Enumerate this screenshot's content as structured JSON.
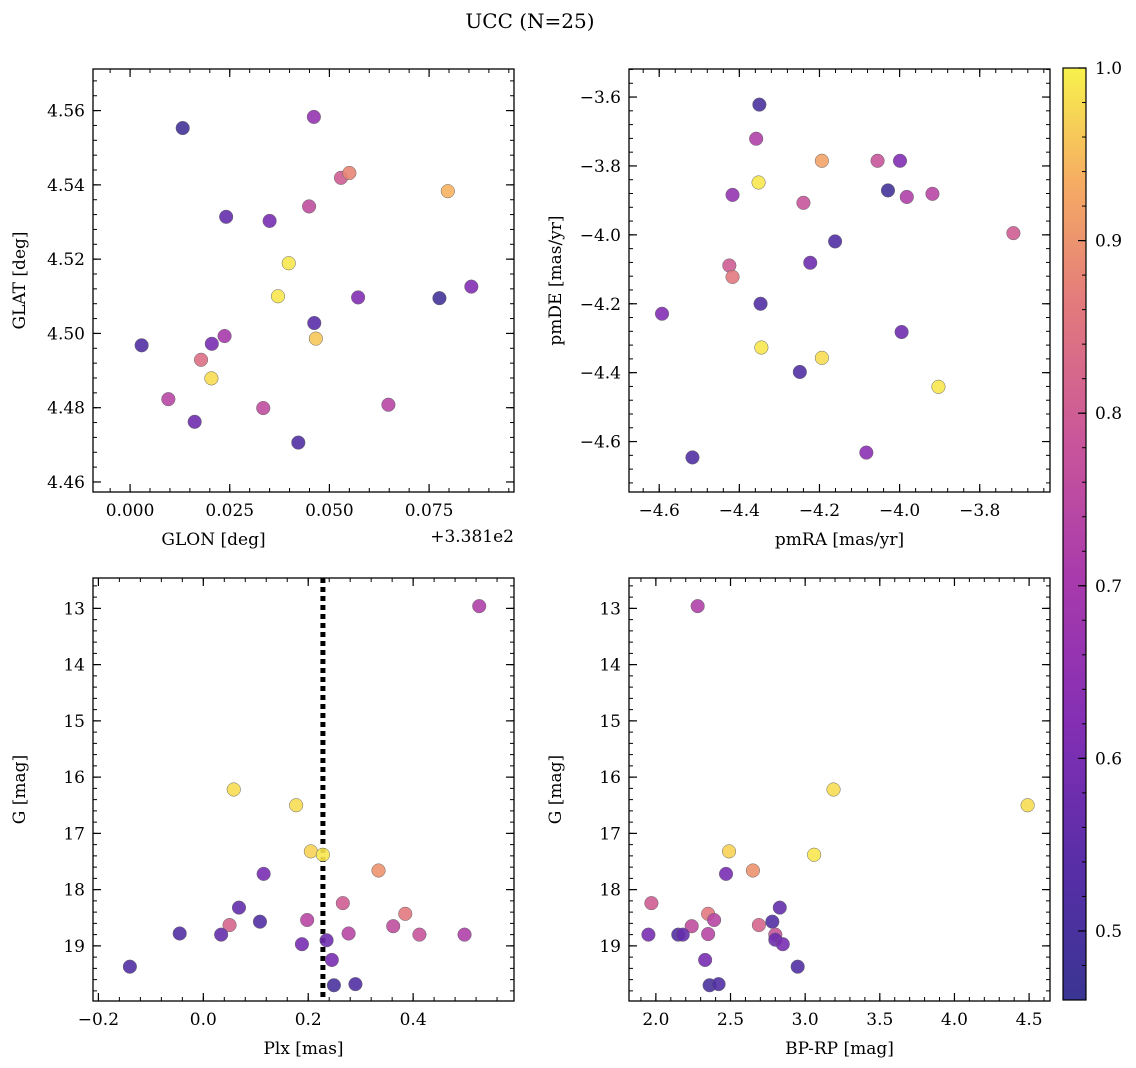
{
  "chart_data": {
    "title": "UCC (N=25)",
    "colorbar": {
      "range": [
        0.46,
        1.0
      ],
      "ticks": [
        0.5,
        0.6,
        0.7,
        0.8,
        0.9,
        1.0
      ],
      "tick_labels": [
        "0.5",
        "0.6",
        "0.7",
        "0.8",
        "0.9",
        "1.0"
      ],
      "colormap": "plasma"
    },
    "panels": [
      {
        "id": "glon-glat",
        "type": "scatter",
        "xlabel": "GLON [deg]",
        "ylabel": "GLAT [deg]",
        "offset_label": "+3.381e2",
        "xlim": [
          -0.0093,
          0.0963
        ],
        "ylim": [
          4.4573,
          4.5712
        ],
        "yinvert": false,
        "xticks": [
          0.0,
          0.025,
          0.05,
          0.075
        ],
        "xtick_labels": [
          "0.000",
          "0.025",
          "0.050",
          "0.075"
        ],
        "yticks": [
          4.46,
          4.48,
          4.5,
          4.52,
          4.54,
          4.56
        ],
        "ytick_labels": [
          "4.46",
          "4.48",
          "4.50",
          "4.52",
          "4.54",
          "4.56"
        ],
        "points": [
          {
            "x": 0.0132,
            "y": 4.5553,
            "c": 0.48
          },
          {
            "x": 0.0461,
            "y": 4.5583,
            "c": 0.66
          },
          {
            "x": 0.0241,
            "y": 4.5314,
            "c": 0.56
          },
          {
            "x": 0.035,
            "y": 4.5303,
            "c": 0.6
          },
          {
            "x": 0.0449,
            "y": 4.5342,
            "c": 0.76
          },
          {
            "x": 0.0529,
            "y": 4.5419,
            "c": 0.8
          },
          {
            "x": 0.055,
            "y": 4.5432,
            "c": 0.88
          },
          {
            "x": 0.0797,
            "y": 4.5383,
            "c": 0.94
          },
          {
            "x": 0.0398,
            "y": 4.5189,
            "c": 0.99
          },
          {
            "x": 0.0371,
            "y": 4.51,
            "c": 0.99
          },
          {
            "x": 0.0572,
            "y": 4.5097,
            "c": 0.62
          },
          {
            "x": 0.0776,
            "y": 4.5095,
            "c": 0.48
          },
          {
            "x": 0.0856,
            "y": 4.5126,
            "c": 0.62
          },
          {
            "x": 0.0462,
            "y": 4.5028,
            "c": 0.54
          },
          {
            "x": 0.0466,
            "y": 4.4986,
            "c": 0.96
          },
          {
            "x": 0.0029,
            "y": 4.4968,
            "c": 0.52
          },
          {
            "x": 0.0205,
            "y": 4.4972,
            "c": 0.6
          },
          {
            "x": 0.0237,
            "y": 4.4993,
            "c": 0.7
          },
          {
            "x": 0.0178,
            "y": 4.4929,
            "c": 0.84
          },
          {
            "x": 0.0204,
            "y": 4.4879,
            "c": 0.98
          },
          {
            "x": 0.0096,
            "y": 4.4823,
            "c": 0.74
          },
          {
            "x": 0.0162,
            "y": 4.4762,
            "c": 0.58
          },
          {
            "x": 0.0334,
            "y": 4.4799,
            "c": 0.76
          },
          {
            "x": 0.0648,
            "y": 4.4808,
            "c": 0.74
          },
          {
            "x": 0.0422,
            "y": 4.4706,
            "c": 0.52
          }
        ]
      },
      {
        "id": "pmra-pmde",
        "type": "scatter",
        "xlabel": "pmRA [mas/yr]",
        "ylabel": "pmDE [mas/yr]",
        "xlim": [
          -4.6754,
          -3.6246
        ],
        "ylim": [
          -4.7464,
          -3.5186
        ],
        "yinvert": false,
        "xticks": [
          -4.6,
          -4.4,
          -4.2,
          -4.0,
          -3.8
        ],
        "xtick_labels": [
          "−4.6",
          "−4.4",
          "−4.2",
          "−4.0",
          "−3.8"
        ],
        "yticks": [
          -4.6,
          -4.4,
          -4.2,
          -4.0,
          -3.8,
          -3.6
        ],
        "ytick_labels": [
          "−4.6",
          "−4.4",
          "−4.2",
          "−4.0",
          "−3.8",
          "−3.6"
        ],
        "points": [
          {
            "x": -4.35,
            "y": -3.622,
            "c": 0.5
          },
          {
            "x": -4.358,
            "y": -3.721,
            "c": 0.72
          },
          {
            "x": -4.194,
            "y": -3.785,
            "c": 0.92
          },
          {
            "x": -4.055,
            "y": -3.785,
            "c": 0.78
          },
          {
            "x": -3.999,
            "y": -3.785,
            "c": 0.62
          },
          {
            "x": -4.352,
            "y": -3.848,
            "c": 0.99
          },
          {
            "x": -4.417,
            "y": -3.884,
            "c": 0.66
          },
          {
            "x": -4.029,
            "y": -3.871,
            "c": 0.48
          },
          {
            "x": -3.982,
            "y": -3.89,
            "c": 0.72
          },
          {
            "x": -3.918,
            "y": -3.881,
            "c": 0.74
          },
          {
            "x": -4.24,
            "y": -3.907,
            "c": 0.78
          },
          {
            "x": -4.161,
            "y": -4.019,
            "c": 0.52
          },
          {
            "x": -3.716,
            "y": -3.995,
            "c": 0.8
          },
          {
            "x": -4.425,
            "y": -4.089,
            "c": 0.8
          },
          {
            "x": -4.223,
            "y": -4.081,
            "c": 0.58
          },
          {
            "x": -4.417,
            "y": -4.122,
            "c": 0.86
          },
          {
            "x": -4.347,
            "y": -4.2,
            "c": 0.52
          },
          {
            "x": -4.593,
            "y": -4.229,
            "c": 0.62
          },
          {
            "x": -3.995,
            "y": -4.282,
            "c": 0.58
          },
          {
            "x": -4.345,
            "y": -4.327,
            "c": 0.99
          },
          {
            "x": -4.194,
            "y": -4.357,
            "c": 0.98
          },
          {
            "x": -4.249,
            "y": -4.398,
            "c": 0.52
          },
          {
            "x": -3.903,
            "y": -4.441,
            "c": 0.99
          },
          {
            "x": -4.083,
            "y": -4.632,
            "c": 0.64
          },
          {
            "x": -4.517,
            "y": -4.646,
            "c": 0.52
          }
        ]
      },
      {
        "id": "plx-g",
        "type": "scatter",
        "xlabel": "Plx [mas]",
        "ylabel": "G [mag]",
        "xlim": [
          -0.2103,
          0.5923
        ],
        "ylim": [
          12.46,
          19.98
        ],
        "yinvert": true,
        "vline": {
          "x": 0.228,
          "style": "dotted"
        },
        "xticks": [
          -0.2,
          0.0,
          0.2,
          0.4
        ],
        "xtick_labels": [
          "−0.2",
          "0.0",
          "0.2",
          "0.4"
        ],
        "yticks": [
          13,
          14,
          15,
          16,
          17,
          18,
          19
        ],
        "ytick_labels": [
          "13",
          "14",
          "15",
          "16",
          "17",
          "18",
          "19"
        ],
        "points": [
          {
            "x": 0.526,
            "y": 12.96,
            "c": 0.72
          },
          {
            "x": 0.058,
            "y": 16.22,
            "c": 0.98
          },
          {
            "x": 0.177,
            "y": 16.5,
            "c": 0.98
          },
          {
            "x": 0.205,
            "y": 17.32,
            "c": 0.97
          },
          {
            "x": 0.228,
            "y": 17.38,
            "c": 0.99
          },
          {
            "x": 0.334,
            "y": 17.66,
            "c": 0.9
          },
          {
            "x": 0.115,
            "y": 17.72,
            "c": 0.6
          },
          {
            "x": 0.068,
            "y": 18.32,
            "c": 0.56
          },
          {
            "x": 0.266,
            "y": 18.24,
            "c": 0.8
          },
          {
            "x": 0.385,
            "y": 18.43,
            "c": 0.86
          },
          {
            "x": 0.108,
            "y": 18.57,
            "c": 0.52
          },
          {
            "x": 0.198,
            "y": 18.54,
            "c": 0.74
          },
          {
            "x": 0.05,
            "y": 18.63,
            "c": 0.82
          },
          {
            "x": 0.362,
            "y": 18.65,
            "c": 0.76
          },
          {
            "x": -0.045,
            "y": 18.78,
            "c": 0.52
          },
          {
            "x": 0.034,
            "y": 18.8,
            "c": 0.56
          },
          {
            "x": 0.277,
            "y": 18.78,
            "c": 0.74
          },
          {
            "x": 0.412,
            "y": 18.8,
            "c": 0.78
          },
          {
            "x": 0.498,
            "y": 18.8,
            "c": 0.72
          },
          {
            "x": 0.188,
            "y": 18.97,
            "c": 0.6
          },
          {
            "x": 0.235,
            "y": 18.9,
            "c": 0.58
          },
          {
            "x": 0.245,
            "y": 19.25,
            "c": 0.6
          },
          {
            "x": -0.14,
            "y": 19.37,
            "c": 0.52
          },
          {
            "x": 0.249,
            "y": 19.7,
            "c": 0.5
          },
          {
            "x": 0.29,
            "y": 19.68,
            "c": 0.52
          }
        ]
      },
      {
        "id": "bprp-g",
        "type": "scatter",
        "xlabel": "BP-RP [mag]",
        "ylabel": "G [mag]",
        "xlim": [
          1.82,
          4.64
        ],
        "ylim": [
          12.46,
          19.98
        ],
        "yinvert": true,
        "xticks": [
          2.0,
          2.5,
          3.0,
          3.5,
          4.0,
          4.5
        ],
        "xtick_labels": [
          "2.0",
          "2.5",
          "3.0",
          "3.5",
          "4.0",
          "4.5"
        ],
        "yticks": [
          13,
          14,
          15,
          16,
          17,
          18,
          19
        ],
        "ytick_labels": [
          "13",
          "14",
          "15",
          "16",
          "17",
          "18",
          "19"
        ],
        "points": [
          {
            "x": 2.28,
            "y": 12.96,
            "c": 0.72
          },
          {
            "x": 3.19,
            "y": 16.22,
            "c": 0.98
          },
          {
            "x": 4.49,
            "y": 16.5,
            "c": 0.98
          },
          {
            "x": 2.49,
            "y": 17.32,
            "c": 0.97
          },
          {
            "x": 3.06,
            "y": 17.38,
            "c": 0.99
          },
          {
            "x": 2.65,
            "y": 17.66,
            "c": 0.9
          },
          {
            "x": 2.47,
            "y": 17.72,
            "c": 0.6
          },
          {
            "x": 1.97,
            "y": 18.24,
            "c": 0.8
          },
          {
            "x": 2.83,
            "y": 18.32,
            "c": 0.56
          },
          {
            "x": 2.35,
            "y": 18.43,
            "c": 0.86
          },
          {
            "x": 2.39,
            "y": 18.54,
            "c": 0.74
          },
          {
            "x": 2.78,
            "y": 18.57,
            "c": 0.52
          },
          {
            "x": 2.24,
            "y": 18.65,
            "c": 0.76
          },
          {
            "x": 2.69,
            "y": 18.63,
            "c": 0.82
          },
          {
            "x": 1.95,
            "y": 18.8,
            "c": 0.6
          },
          {
            "x": 2.15,
            "y": 18.8,
            "c": 0.52
          },
          {
            "x": 2.18,
            "y": 18.8,
            "c": 0.56
          },
          {
            "x": 2.35,
            "y": 18.79,
            "c": 0.74
          },
          {
            "x": 2.8,
            "y": 18.8,
            "c": 0.78
          },
          {
            "x": 2.8,
            "y": 18.89,
            "c": 0.58
          },
          {
            "x": 2.85,
            "y": 18.97,
            "c": 0.6
          },
          {
            "x": 2.33,
            "y": 19.25,
            "c": 0.6
          },
          {
            "x": 2.95,
            "y": 19.37,
            "c": 0.52
          },
          {
            "x": 2.36,
            "y": 19.7,
            "c": 0.5
          },
          {
            "x": 2.42,
            "y": 19.68,
            "c": 0.52
          }
        ]
      }
    ]
  }
}
